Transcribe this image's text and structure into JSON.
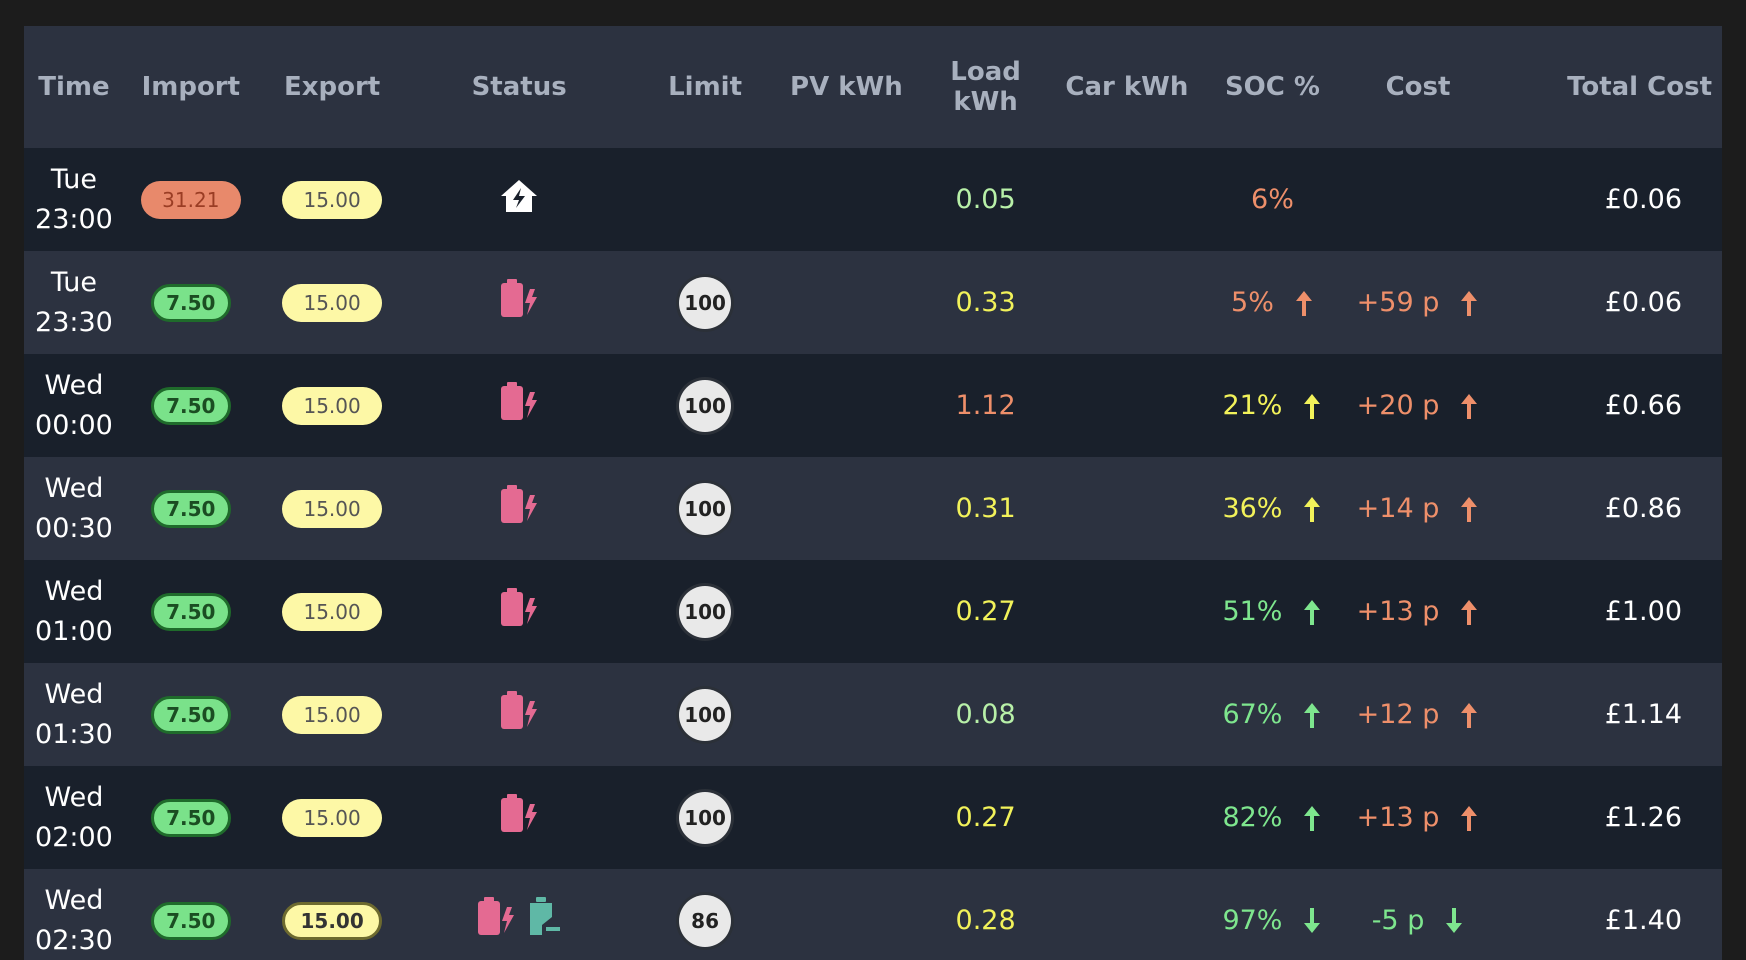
{
  "table": {
    "headers": {
      "time": "Time",
      "import": "Import",
      "export": "Export",
      "status": "Status",
      "limit": "Limit",
      "pv": "PV kWh",
      "load": "Load kWh",
      "car": "Car kWh",
      "soc": "SOC %",
      "cost": "Cost",
      "total": "Total Cost"
    },
    "rows": [
      {
        "day": "Tue",
        "time": "23:00",
        "import": "31.21",
        "export": "15.00",
        "status": "home-charge-icon",
        "limit": "",
        "pv": "",
        "load": "0.05",
        "car": "",
        "soc": "6%",
        "soc_dir": "",
        "cost": "",
        "cost_dir": "",
        "total": "£0.06"
      },
      {
        "day": "Tue",
        "time": "23:30",
        "import": "7.50",
        "export": "15.00",
        "status": "battery-charging-icon",
        "limit": "100",
        "pv": "",
        "load": "0.33",
        "car": "",
        "soc": "5%",
        "soc_dir": "up",
        "cost": "+59 p",
        "cost_dir": "up",
        "total": "£0.06"
      },
      {
        "day": "Wed",
        "time": "00:00",
        "import": "7.50",
        "export": "15.00",
        "status": "battery-charging-icon",
        "limit": "100",
        "pv": "",
        "load": "1.12",
        "car": "",
        "soc": "21%",
        "soc_dir": "up",
        "cost": "+20 p",
        "cost_dir": "up",
        "total": "£0.66"
      },
      {
        "day": "Wed",
        "time": "00:30",
        "import": "7.50",
        "export": "15.00",
        "status": "battery-charging-icon",
        "limit": "100",
        "pv": "",
        "load": "0.31",
        "car": "",
        "soc": "36%",
        "soc_dir": "up",
        "cost": "+14 p",
        "cost_dir": "up",
        "total": "£0.86"
      },
      {
        "day": "Wed",
        "time": "01:00",
        "import": "7.50",
        "export": "15.00",
        "status": "battery-charging-icon",
        "limit": "100",
        "pv": "",
        "load": "0.27",
        "car": "",
        "soc": "51%",
        "soc_dir": "up",
        "cost": "+13 p",
        "cost_dir": "up",
        "total": "£1.00"
      },
      {
        "day": "Wed",
        "time": "01:30",
        "import": "7.50",
        "export": "15.00",
        "status": "battery-charging-icon",
        "limit": "100",
        "pv": "",
        "load": "0.08",
        "car": "",
        "soc": "67%",
        "soc_dir": "up",
        "cost": "+12 p",
        "cost_dir": "up",
        "total": "£1.14"
      },
      {
        "day": "Wed",
        "time": "02:00",
        "import": "7.50",
        "export": "15.00",
        "status": "battery-charging-icon",
        "limit": "100",
        "pv": "",
        "load": "0.27",
        "car": "",
        "soc": "82%",
        "soc_dir": "up",
        "cost": "+13 p",
        "cost_dir": "up",
        "total": "£1.26"
      },
      {
        "day": "Wed",
        "time": "02:30",
        "import": "7.50",
        "export": "15.00",
        "status": "battery-charging-and-car-icon",
        "limit": "86",
        "pv": "",
        "load": "0.28",
        "car": "",
        "soc": "97%",
        "soc_dir": "down",
        "cost": "-5 p",
        "cost_dir": "down",
        "total": "£1.40"
      }
    ]
  },
  "colors": {
    "orange": "#ee8f6a",
    "yellow": "#f2f25a",
    "green": "#7ee68e",
    "light_green": "#b8f0a8",
    "pink": "#e46a92",
    "teal": "#5fb8a6"
  }
}
